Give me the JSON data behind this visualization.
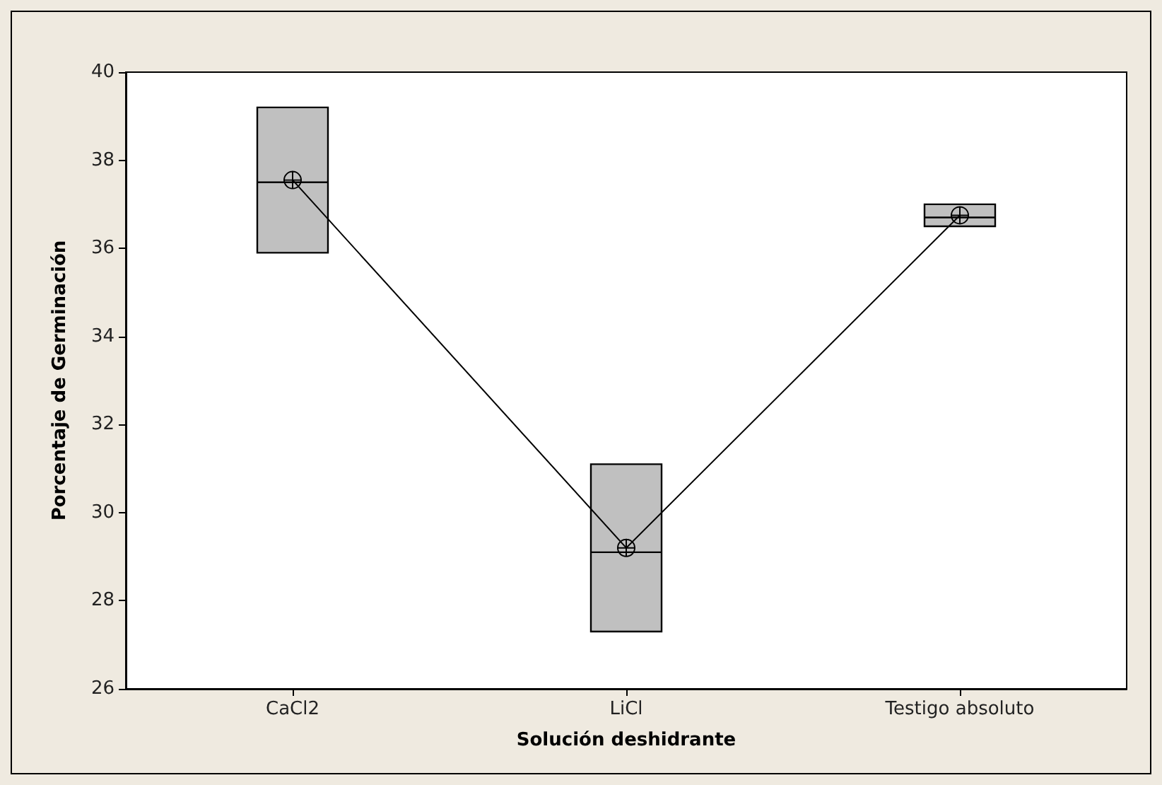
{
  "chart_data": {
    "type": "box",
    "xlabel": "Solución deshidrante",
    "ylabel": "Porcentaje de Germinación",
    "categories": [
      "CaCl2",
      "LiCl",
      "Testigo absoluto"
    ],
    "boxes": [
      {
        "low": 35.9,
        "q1": 35.9,
        "median": 37.5,
        "q3": 39.2,
        "high": 39.2
      },
      {
        "low": 27.3,
        "q1": 27.3,
        "median": 29.1,
        "q3": 31.1,
        "high": 31.1
      },
      {
        "low": 36.5,
        "q1": 36.5,
        "median": 36.7,
        "q3": 37.0,
        "high": 37.0
      }
    ],
    "color": "#c0c0c0",
    "series": [
      {
        "type": "line",
        "color": "#000000",
        "values": [
          37.55,
          29.2,
          36.75
        ]
      }
    ],
    "marker": "circle",
    "ylim": [
      26,
      40
    ],
    "yticks": [
      26,
      28,
      30,
      32,
      34,
      36,
      38,
      40
    ],
    "grid": false
  }
}
